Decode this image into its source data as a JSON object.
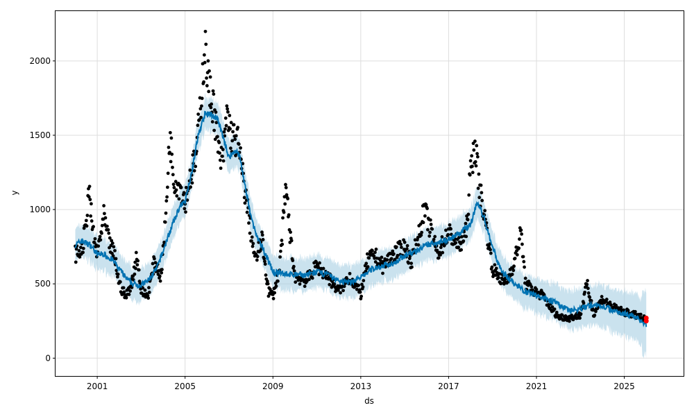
{
  "chart_data": {
    "type": "line",
    "title": "",
    "xlabel": "ds",
    "ylabel": "y",
    "xlim": [
      1999.1,
      2027.7
    ],
    "ylim": [
      -120,
      2340
    ],
    "xticks": [
      2001,
      2005,
      2009,
      2013,
      2017,
      2021,
      2025
    ],
    "xtick_labels": [
      "2001",
      "2005",
      "2009",
      "2013",
      "2017",
      "2021",
      "2025"
    ],
    "yticks": [
      0,
      500,
      1000,
      1500,
      2000
    ],
    "ytick_labels": [
      "0",
      "500",
      "1000",
      "1500",
      "2000"
    ],
    "grid": true,
    "colors": {
      "forecast": "#0072B2",
      "band": "#A6CEE3",
      "observed": "#000000",
      "future": "#FF0000"
    },
    "forecast_yhat": [
      [
        2000.0,
        760
      ],
      [
        2000.3,
        790
      ],
      [
        2000.7,
        760
      ],
      [
        2001.0,
        700
      ],
      [
        2001.3,
        700
      ],
      [
        2001.7,
        660
      ],
      [
        2002.0,
        600
      ],
      [
        2002.3,
        540
      ],
      [
        2002.6,
        500
      ],
      [
        2003.0,
        490
      ],
      [
        2003.3,
        520
      ],
      [
        2003.7,
        600
      ],
      [
        2004.0,
        720
      ],
      [
        2004.3,
        850
      ],
      [
        2004.7,
        1000
      ],
      [
        2005.0,
        1060
      ],
      [
        2005.3,
        1250
      ],
      [
        2005.6,
        1500
      ],
      [
        2005.9,
        1640
      ],
      [
        2006.2,
        1640
      ],
      [
        2006.5,
        1600
      ],
      [
        2006.8,
        1450
      ],
      [
        2007.0,
        1350
      ],
      [
        2007.3,
        1400
      ],
      [
        2007.5,
        1350
      ],
      [
        2007.8,
        1100
      ],
      [
        2008.0,
        950
      ],
      [
        2008.3,
        800
      ],
      [
        2008.6,
        720
      ],
      [
        2008.9,
        620
      ],
      [
        2009.0,
        580
      ],
      [
        2009.5,
        570
      ],
      [
        2010.0,
        560
      ],
      [
        2010.5,
        560
      ],
      [
        2011.0,
        580
      ],
      [
        2011.5,
        560
      ],
      [
        2012.0,
        520
      ],
      [
        2012.5,
        510
      ],
      [
        2013.0,
        540
      ],
      [
        2013.5,
        600
      ],
      [
        2014.0,
        620
      ],
      [
        2014.5,
        640
      ],
      [
        2015.0,
        690
      ],
      [
        2015.5,
        720
      ],
      [
        2016.0,
        760
      ],
      [
        2016.5,
        780
      ],
      [
        2017.0,
        800
      ],
      [
        2017.5,
        840
      ],
      [
        2018.0,
        900
      ],
      [
        2018.3,
        1050
      ],
      [
        2018.6,
        950
      ],
      [
        2019.0,
        750
      ],
      [
        2019.3,
        620
      ],
      [
        2019.7,
        540
      ],
      [
        2020.0,
        500
      ],
      [
        2020.5,
        450
      ],
      [
        2021.0,
        420
      ],
      [
        2021.5,
        400
      ],
      [
        2022.0,
        360
      ],
      [
        2022.5,
        320
      ],
      [
        2023.0,
        330
      ],
      [
        2023.5,
        360
      ],
      [
        2024.0,
        350
      ],
      [
        2024.5,
        320
      ],
      [
        2025.0,
        300
      ],
      [
        2025.5,
        280
      ],
      [
        2026.0,
        230
      ]
    ],
    "observed": [
      [
        2000.0,
        700
      ],
      [
        2000.3,
        720
      ],
      [
        2000.5,
        900
      ],
      [
        2000.6,
        1150
      ],
      [
        2000.8,
        850
      ],
      [
        2001.0,
        700
      ],
      [
        2001.3,
        950
      ],
      [
        2001.5,
        800
      ],
      [
        2001.8,
        680
      ],
      [
        2002.0,
        500
      ],
      [
        2002.3,
        410
      ],
      [
        2002.6,
        520
      ],
      [
        2002.8,
        700
      ],
      [
        2003.0,
        450
      ],
      [
        2003.3,
        420
      ],
      [
        2003.6,
        650
      ],
      [
        2003.9,
        550
      ],
      [
        2004.1,
        900
      ],
      [
        2004.3,
        1500
      ],
      [
        2004.5,
        1200
      ],
      [
        2004.8,
        1150
      ],
      [
        2005.0,
        1050
      ],
      [
        2005.2,
        1200
      ],
      [
        2005.5,
        1350
      ],
      [
        2005.7,
        1700
      ],
      [
        2005.9,
        2100
      ],
      [
        2006.1,
        1800
      ],
      [
        2006.3,
        1700
      ],
      [
        2006.5,
        1400
      ],
      [
        2006.7,
        1300
      ],
      [
        2006.9,
        1650
      ],
      [
        2007.1,
        1500
      ],
      [
        2007.4,
        1450
      ],
      [
        2007.6,
        1250
      ],
      [
        2007.9,
        950
      ],
      [
        2008.2,
        650
      ],
      [
        2008.5,
        800
      ],
      [
        2008.8,
        450
      ],
      [
        2009.0,
        420
      ],
      [
        2009.3,
        600
      ],
      [
        2009.6,
        1150
      ],
      [
        2009.8,
        800
      ],
      [
        2010.0,
        550
      ],
      [
        2010.5,
        520
      ],
      [
        2011.0,
        620
      ],
      [
        2011.5,
        550
      ],
      [
        2012.0,
        450
      ],
      [
        2012.5,
        550
      ],
      [
        2013.0,
        430
      ],
      [
        2013.3,
        650
      ],
      [
        2013.6,
        700
      ],
      [
        2014.0,
        620
      ],
      [
        2014.5,
        700
      ],
      [
        2015.0,
        750
      ],
      [
        2015.3,
        650
      ],
      [
        2015.6,
        800
      ],
      [
        2015.9,
        1000
      ],
      [
        2016.2,
        850
      ],
      [
        2016.5,
        700
      ],
      [
        2017.0,
        850
      ],
      [
        2017.5,
        750
      ],
      [
        2017.8,
        850
      ],
      [
        2018.0,
        1250
      ],
      [
        2018.2,
        1450
      ],
      [
        2018.4,
        1150
      ],
      [
        2018.7,
        900
      ],
      [
        2019.0,
        600
      ],
      [
        2019.3,
        550
      ],
      [
        2019.6,
        500
      ],
      [
        2020.0,
        650
      ],
      [
        2020.3,
        850
      ],
      [
        2020.5,
        500
      ],
      [
        2020.9,
        450
      ],
      [
        2021.3,
        420
      ],
      [
        2021.7,
        330
      ],
      [
        2022.0,
        280
      ],
      [
        2022.5,
        270
      ],
      [
        2023.0,
        290
      ],
      [
        2023.3,
        500
      ],
      [
        2023.6,
        300
      ],
      [
        2024.0,
        400
      ],
      [
        2024.5,
        340
      ],
      [
        2025.0,
        310
      ],
      [
        2025.5,
        290
      ],
      [
        2025.95,
        260
      ]
    ],
    "future_points": [
      [
        2026.0,
        250
      ],
      [
        2026.0,
        270
      ]
    ]
  }
}
